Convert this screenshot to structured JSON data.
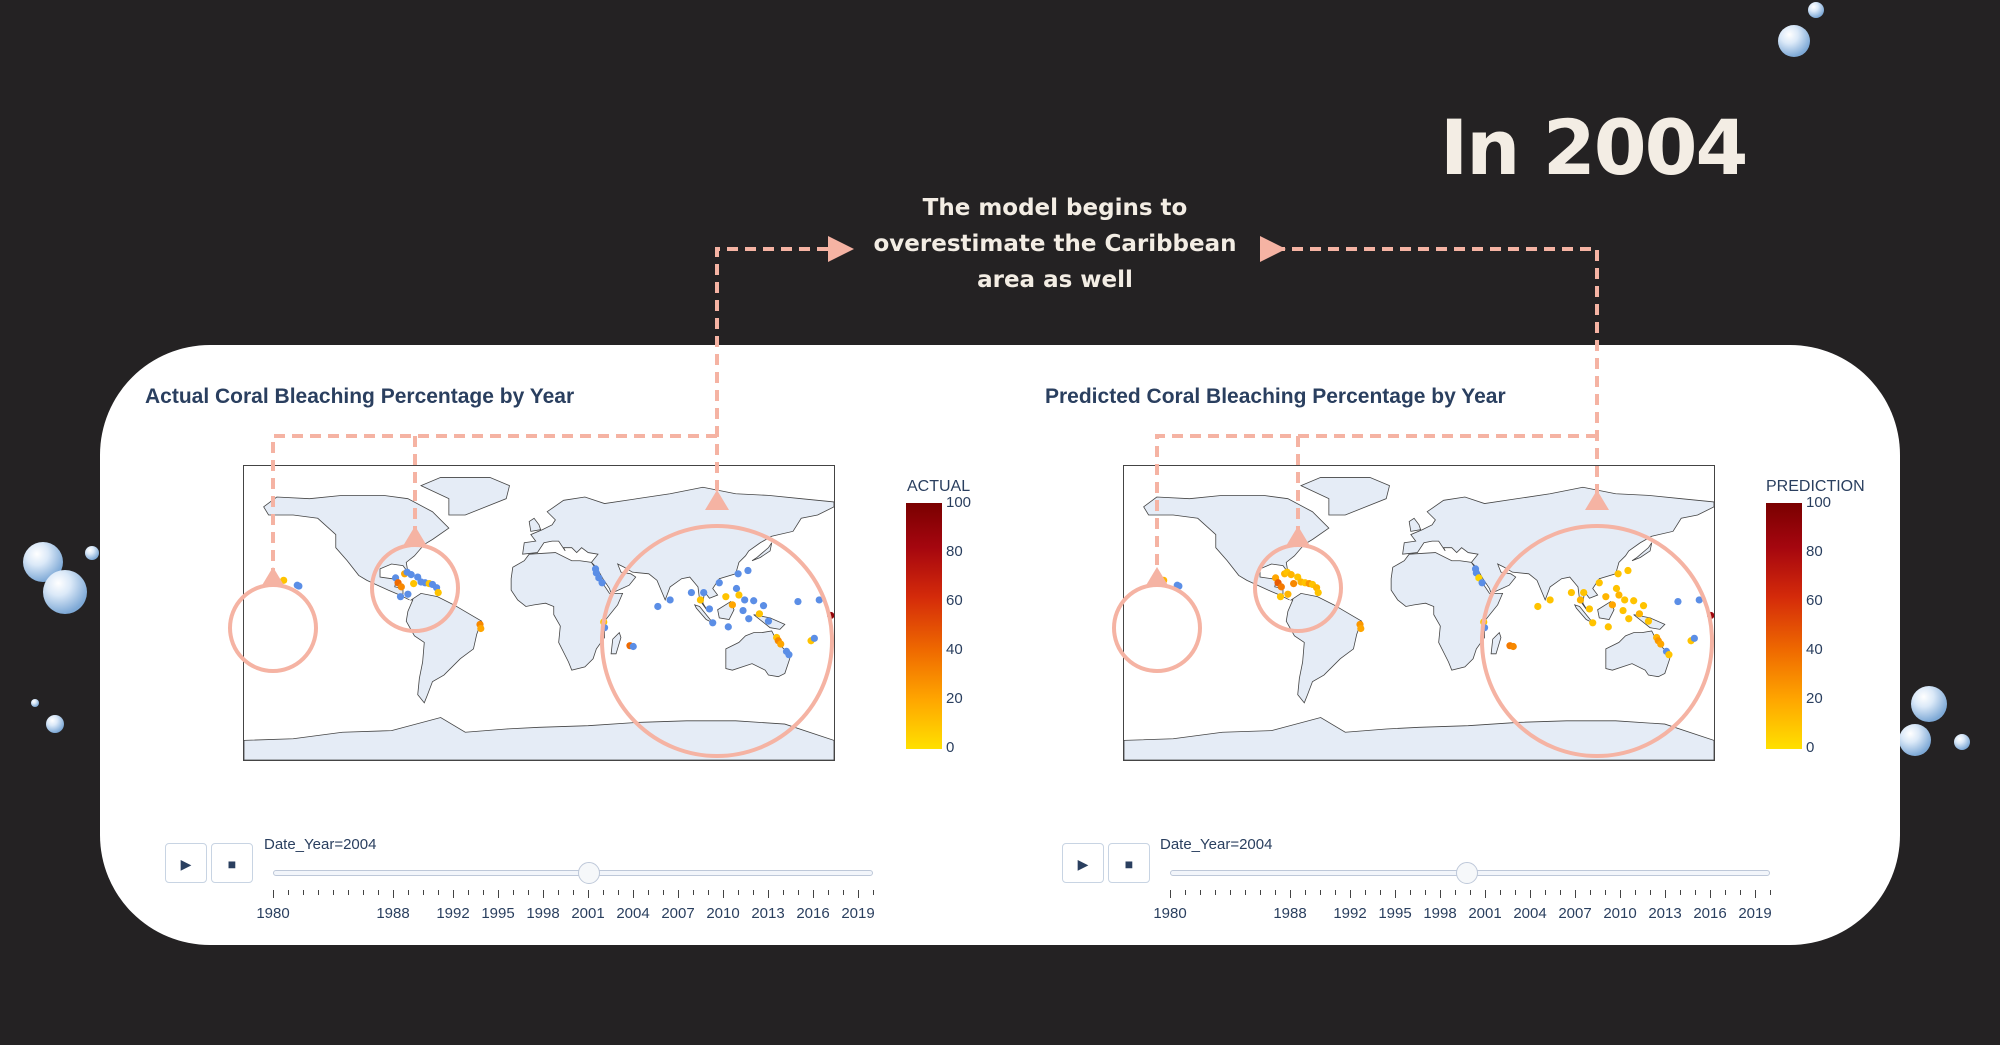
{
  "headline": "In 2004",
  "annotation": {
    "lines": [
      "The model begins to",
      "overestimate the Caribbean",
      "area as well"
    ]
  },
  "colors": {
    "background": "#242223",
    "accent": "#f5b3a3",
    "low_value": "#ffe000",
    "high_value": "#7a0000",
    "no_bleaching": "#5b8ee6"
  },
  "panels": [
    {
      "id": "actual",
      "title": "Actual Coral Bleaching Percentage by Year",
      "colorbar_title": "ACTUAL",
      "colorbar_ticks": [
        "100",
        "80",
        "60",
        "40",
        "20",
        "0"
      ],
      "slider_label": "Date_Year=2004",
      "play_icon": "play-icon",
      "stop_icon": "stop-icon"
    },
    {
      "id": "prediction",
      "title": "Predicted Coral Bleaching Percentage by Year",
      "colorbar_title": "PREDICTION",
      "colorbar_ticks": [
        "100",
        "80",
        "60",
        "40",
        "20",
        "0"
      ],
      "slider_label": "Date_Year=2004",
      "play_icon": "play-icon",
      "stop_icon": "stop-icon"
    }
  ],
  "slider": {
    "min_year": 1980,
    "max_year": 2020,
    "current_year": 2004,
    "year_labels": [
      "1980",
      "1988",
      "1992",
      "1995",
      "1998",
      "2001",
      "2004",
      "2007",
      "2010",
      "2013",
      "2016",
      "2019"
    ]
  },
  "chart_data": [
    {
      "type": "scatter",
      "title": "Actual Coral Bleaching Percentage by Year",
      "colorbar": {
        "title": "ACTUAL",
        "range": [
          0,
          100
        ],
        "ticks": [
          0,
          20,
          40,
          60,
          80,
          100
        ]
      },
      "frame": {
        "Date_Year": 2004
      },
      "points": [
        {
          "lon": -155.8,
          "lat": 20.0,
          "value": 10
        },
        {
          "lon": -147.5,
          "lat": 17.0,
          "value": 0
        },
        {
          "lon": -146.5,
          "lat": 16.5,
          "value": 0
        },
        {
          "lon": -87.5,
          "lat": 21.5,
          "value": 0
        },
        {
          "lon": -86.0,
          "lat": 18.5,
          "value": 40
        },
        {
          "lon": -84.0,
          "lat": 16.0,
          "value": 30
        },
        {
          "lon": -82.0,
          "lat": 24.0,
          "value": 20
        },
        {
          "lon": -80.5,
          "lat": 25.0,
          "value": 0
        },
        {
          "lon": -78.0,
          "lat": 23.5,
          "value": 0
        },
        {
          "lon": -76.5,
          "lat": 18.0,
          "value": 10
        },
        {
          "lon": -74.0,
          "lat": 22.0,
          "value": 0
        },
        {
          "lon": -72.0,
          "lat": 19.0,
          "value": 0
        },
        {
          "lon": -69.5,
          "lat": 18.5,
          "value": 0
        },
        {
          "lon": -67.0,
          "lat": 18.0,
          "value": 10
        },
        {
          "lon": -65.0,
          "lat": 17.5,
          "value": 0
        },
        {
          "lon": -62.5,
          "lat": 15.5,
          "value": 0
        },
        {
          "lon": -61.5,
          "lat": 12.5,
          "value": 10
        },
        {
          "lon": -84.5,
          "lat": 10.0,
          "value": 0
        },
        {
          "lon": -80.0,
          "lat": 11.5,
          "value": 0
        },
        {
          "lon": -36.0,
          "lat": -7.0,
          "value": 30
        },
        {
          "lon": -35.5,
          "lat": -9.5,
          "value": 20
        },
        {
          "lon": 34.5,
          "lat": 27.0,
          "value": 0
        },
        {
          "lon": 35.0,
          "lat": 24.5,
          "value": 0
        },
        {
          "lon": 36.5,
          "lat": 21.5,
          "value": 0
        },
        {
          "lon": 38.5,
          "lat": 18.5,
          "value": 0
        },
        {
          "lon": 39.5,
          "lat": -5.5,
          "value": 10
        },
        {
          "lon": 40.0,
          "lat": -9.0,
          "value": 0
        },
        {
          "lon": 55.5,
          "lat": -20.0,
          "value": 40
        },
        {
          "lon": 57.5,
          "lat": -20.5,
          "value": 0
        },
        {
          "lon": 72.5,
          "lat": 4.0,
          "value": 0
        },
        {
          "lon": 80.0,
          "lat": 8.0,
          "value": 0
        },
        {
          "lon": 93.0,
          "lat": 12.5,
          "value": 0
        },
        {
          "lon": 98.5,
          "lat": 8.0,
          "value": 10
        },
        {
          "lon": 100.5,
          "lat": 12.5,
          "value": 0
        },
        {
          "lon": 104.0,
          "lat": 2.5,
          "value": 0
        },
        {
          "lon": 106.0,
          "lat": -6.0,
          "value": 0
        },
        {
          "lon": 110.0,
          "lat": 18.5,
          "value": 0
        },
        {
          "lon": 114.0,
          "lat": 10.0,
          "value": 10
        },
        {
          "lon": 115.5,
          "lat": -8.5,
          "value": 0
        },
        {
          "lon": 118.0,
          "lat": 5.0,
          "value": 20
        },
        {
          "lon": 120.5,
          "lat": 15.0,
          "value": 0
        },
        {
          "lon": 121.5,
          "lat": 24.0,
          "value": 0
        },
        {
          "lon": 122.0,
          "lat": 11.0,
          "value": 10
        },
        {
          "lon": 124.5,
          "lat": 1.5,
          "value": 0
        },
        {
          "lon": 125.5,
          "lat": 8.0,
          "value": 0
        },
        {
          "lon": 127.5,
          "lat": 26.0,
          "value": 0
        },
        {
          "lon": 128.0,
          "lat": -3.5,
          "value": 0
        },
        {
          "lon": 131.0,
          "lat": 7.5,
          "value": 0
        },
        {
          "lon": 134.5,
          "lat": -0.5,
          "value": 10
        },
        {
          "lon": 137.0,
          "lat": 4.5,
          "value": 0
        },
        {
          "lon": 140.0,
          "lat": -5.0,
          "value": 0
        },
        {
          "lon": 145.0,
          "lat": -15.0,
          "value": 10
        },
        {
          "lon": 146.0,
          "lat": -17.0,
          "value": 30
        },
        {
          "lon": 147.5,
          "lat": -19.0,
          "value": 20
        },
        {
          "lon": 151.0,
          "lat": -23.5,
          "value": 0
        },
        {
          "lon": 152.5,
          "lat": -25.5,
          "value": 0
        },
        {
          "lon": 158.0,
          "lat": 7.0,
          "value": 0
        },
        {
          "lon": 166.0,
          "lat": -17.0,
          "value": 10
        },
        {
          "lon": 168.0,
          "lat": -15.5,
          "value": 0
        },
        {
          "lon": 171.0,
          "lat": 8.0,
          "value": 0
        },
        {
          "lon": 178.0,
          "lat": -1.5,
          "value": 90
        }
      ]
    },
    {
      "type": "scatter",
      "title": "Predicted Coral Bleaching Percentage by Year",
      "colorbar": {
        "title": "PREDICTION",
        "range": [
          0,
          100
        ],
        "ticks": [
          0,
          20,
          40,
          60,
          80,
          100
        ]
      },
      "frame": {
        "Date_Year": 2004
      },
      "points": [
        {
          "lon": -155.8,
          "lat": 20.0,
          "value": 15
        },
        {
          "lon": -147.5,
          "lat": 17.0,
          "value": 0
        },
        {
          "lon": -146.5,
          "lat": 16.5,
          "value": 0
        },
        {
          "lon": -87.5,
          "lat": 21.5,
          "value": 20
        },
        {
          "lon": -86.0,
          "lat": 18.5,
          "value": 45
        },
        {
          "lon": -84.0,
          "lat": 16.0,
          "value": 35
        },
        {
          "lon": -82.0,
          "lat": 24.0,
          "value": 15
        },
        {
          "lon": -80.5,
          "lat": 25.0,
          "value": 10
        },
        {
          "lon": -78.0,
          "lat": 23.5,
          "value": 15
        },
        {
          "lon": -76.5,
          "lat": 18.0,
          "value": 30
        },
        {
          "lon": -74.0,
          "lat": 22.0,
          "value": 10
        },
        {
          "lon": -72.0,
          "lat": 19.0,
          "value": 15
        },
        {
          "lon": -69.5,
          "lat": 18.5,
          "value": 10
        },
        {
          "lon": -67.0,
          "lat": 18.0,
          "value": 25
        },
        {
          "lon": -65.0,
          "lat": 17.5,
          "value": 10
        },
        {
          "lon": -62.5,
          "lat": 15.5,
          "value": 15
        },
        {
          "lon": -61.5,
          "lat": 12.5,
          "value": 10
        },
        {
          "lon": -84.5,
          "lat": 10.0,
          "value": 10
        },
        {
          "lon": -80.0,
          "lat": 11.5,
          "value": 15
        },
        {
          "lon": -36.0,
          "lat": -7.0,
          "value": 25
        },
        {
          "lon": -35.5,
          "lat": -9.5,
          "value": 20
        },
        {
          "lon": 34.5,
          "lat": 27.0,
          "value": 0
        },
        {
          "lon": 35.0,
          "lat": 24.5,
          "value": 0
        },
        {
          "lon": 36.5,
          "lat": 21.5,
          "value": 5
        },
        {
          "lon": 38.5,
          "lat": 18.5,
          "value": 0
        },
        {
          "lon": 39.5,
          "lat": -5.5,
          "value": 10
        },
        {
          "lon": 40.0,
          "lat": -9.0,
          "value": 0
        },
        {
          "lon": 55.5,
          "lat": -20.0,
          "value": 35
        },
        {
          "lon": 57.5,
          "lat": -20.5,
          "value": 30
        },
        {
          "lon": 72.5,
          "lat": 4.0,
          "value": 10
        },
        {
          "lon": 80.0,
          "lat": 8.0,
          "value": 10
        },
        {
          "lon": 93.0,
          "lat": 12.5,
          "value": 10
        },
        {
          "lon": 98.5,
          "lat": 8.0,
          "value": 15
        },
        {
          "lon": 100.5,
          "lat": 12.5,
          "value": 10
        },
        {
          "lon": 104.0,
          "lat": 2.5,
          "value": 10
        },
        {
          "lon": 106.0,
          "lat": -6.0,
          "value": 10
        },
        {
          "lon": 110.0,
          "lat": 18.5,
          "value": 10
        },
        {
          "lon": 114.0,
          "lat": 10.0,
          "value": 15
        },
        {
          "lon": 115.5,
          "lat": -8.5,
          "value": 10
        },
        {
          "lon": 118.0,
          "lat": 5.0,
          "value": 20
        },
        {
          "lon": 120.5,
          "lat": 15.0,
          "value": 10
        },
        {
          "lon": 121.5,
          "lat": 24.0,
          "value": 10
        },
        {
          "lon": 122.0,
          "lat": 11.0,
          "value": 15
        },
        {
          "lon": 124.5,
          "lat": 1.5,
          "value": 10
        },
        {
          "lon": 125.5,
          "lat": 8.0,
          "value": 10
        },
        {
          "lon": 127.5,
          "lat": 26.0,
          "value": 10
        },
        {
          "lon": 128.0,
          "lat": -3.5,
          "value": 10
        },
        {
          "lon": 131.0,
          "lat": 7.5,
          "value": 10
        },
        {
          "lon": 134.5,
          "lat": -0.5,
          "value": 15
        },
        {
          "lon": 137.0,
          "lat": 4.5,
          "value": 10
        },
        {
          "lon": 140.0,
          "lat": -5.0,
          "value": 10
        },
        {
          "lon": 145.0,
          "lat": -15.0,
          "value": 15
        },
        {
          "lon": 146.0,
          "lat": -17.0,
          "value": 25
        },
        {
          "lon": 147.5,
          "lat": -19.0,
          "value": 20
        },
        {
          "lon": 151.0,
          "lat": -23.5,
          "value": 0
        },
        {
          "lon": 152.5,
          "lat": -25.5,
          "value": 10
        },
        {
          "lon": 158.0,
          "lat": 7.0,
          "value": 0
        },
        {
          "lon": 166.0,
          "lat": -17.0,
          "value": 10
        },
        {
          "lon": 168.0,
          "lat": -15.5,
          "value": 0
        },
        {
          "lon": 171.0,
          "lat": 8.0,
          "value": 0
        },
        {
          "lon": 178.0,
          "lat": -1.5,
          "value": 85
        }
      ]
    }
  ]
}
